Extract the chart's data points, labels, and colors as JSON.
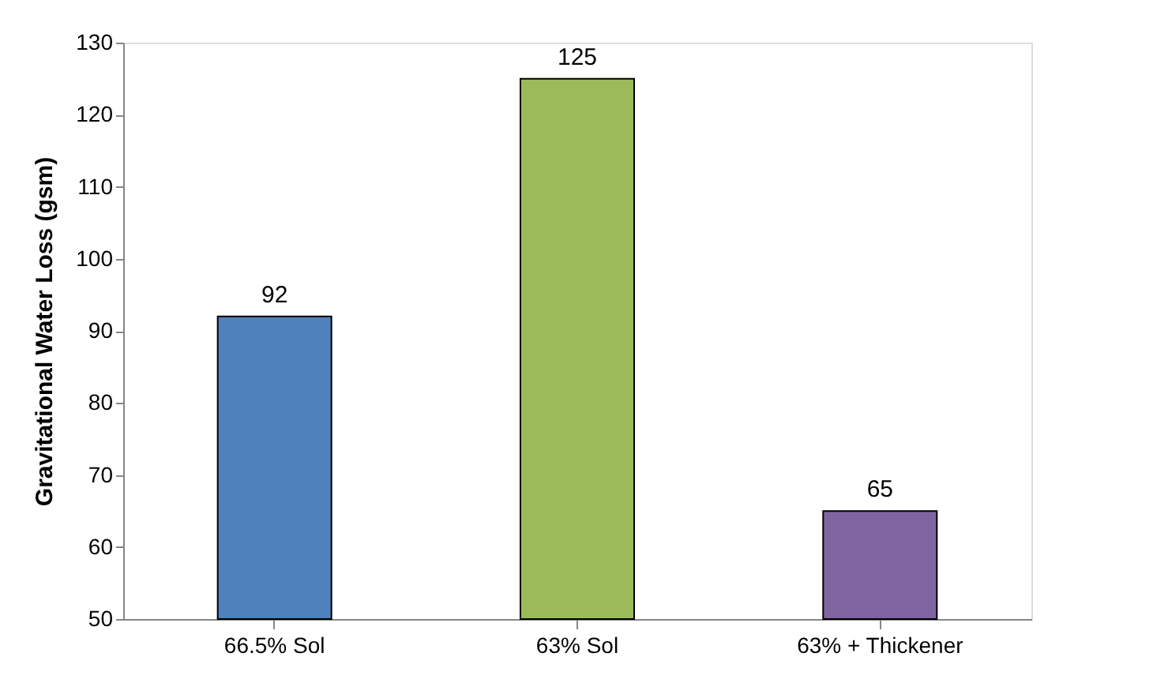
{
  "chart_data": {
    "type": "bar",
    "ylabel": "Gravitational Water Loss (gsm)",
    "categories": [
      "66.5% Sol",
      "63% Sol",
      "63% + Thickener"
    ],
    "values": [
      92,
      125,
      65
    ],
    "colors": [
      "#4f81bd",
      "#9bbb59",
      "#8064a2"
    ],
    "ylim": [
      50,
      130
    ],
    "yticks": [
      50,
      60,
      70,
      80,
      90,
      100,
      110,
      120,
      130
    ],
    "data_labels": true,
    "grid": false
  }
}
